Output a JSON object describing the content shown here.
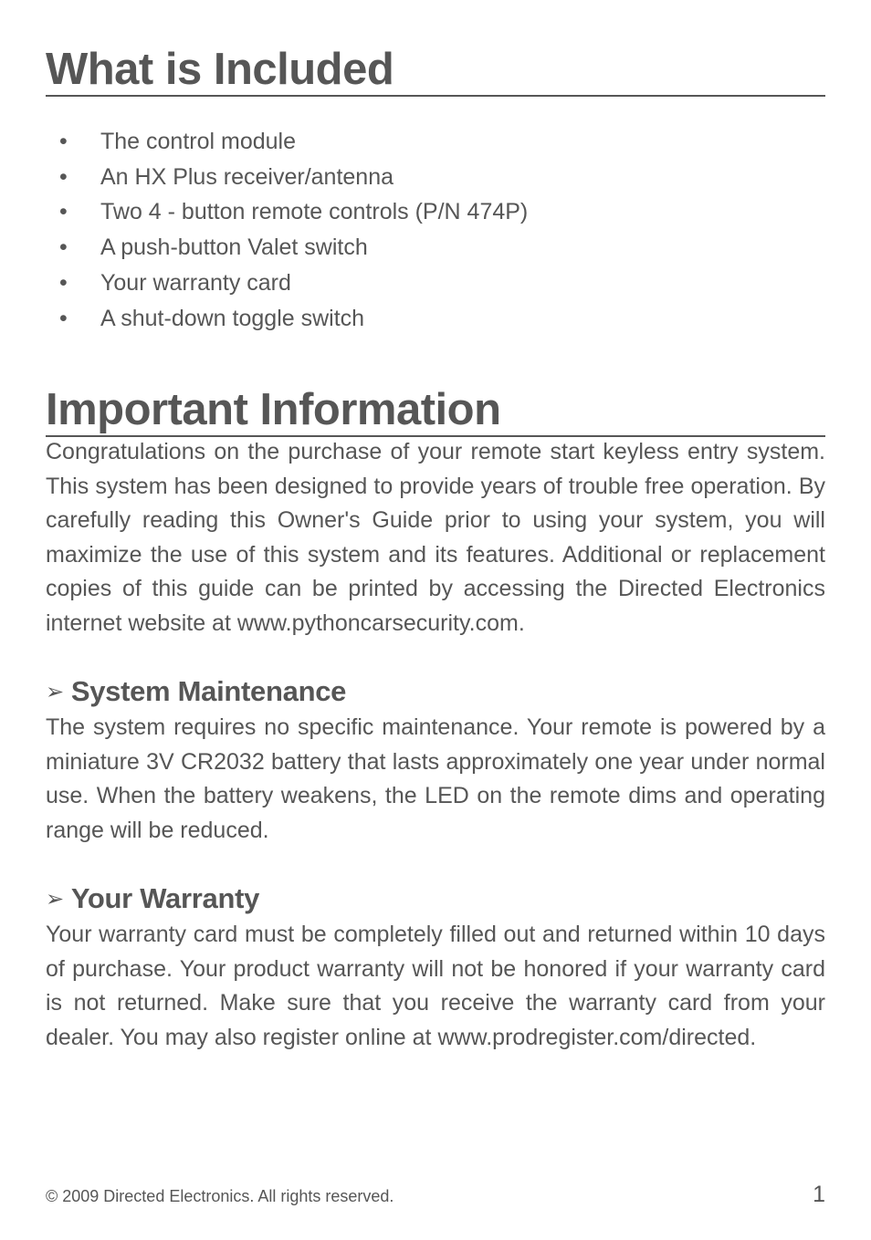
{
  "section1": {
    "heading": "What is Included",
    "bullets": [
      "The control module",
      "An HX Plus receiver/antenna",
      "Two 4 - button remote controls (P/N 474P)",
      "A push-button Valet switch",
      "Your warranty card",
      "A shut-down toggle switch"
    ]
  },
  "section2": {
    "heading": "Important Information",
    "intro_text": "Congratulations on the purchase of your remote start keyless entry system. This system has been designed to provide years of trouble free operation. By carefully reading this Owner's Guide prior to using your system, you will maximize the use of this system and its features. Additional or replacement copies of this guide can be printed by accessing the Directed Electronics internet website at ",
    "intro_link": "www.pythoncarsecurity.com",
    "intro_suffix": ".",
    "sub1": {
      "heading": "System Maintenance",
      "text": "The system requires no specific maintenance. Your remote is powered by a miniature 3V CR2032 battery that lasts approximately one year under normal use. When the battery weakens, the LED on the remote dims and operating range will be reduced."
    },
    "sub2": {
      "heading": "Your Warranty",
      "text": "Your warranty card must be completely filled out and returned within 10 days of purchase. Your product warranty will not be honored if your warranty card is not returned. Make sure that you receive the warranty card from your dealer. You may also register online at ",
      "link": "www.prodregister.com/directed."
    }
  },
  "footer": {
    "copyright": "© 2009 Directed Electronics. All rights reserved.",
    "page": "1"
  },
  "styles": {
    "background_color": "#ffffff",
    "text_color": "#565656",
    "heading_fontsize": 49,
    "subheading_fontsize": 31,
    "body_fontsize": 25,
    "footer_fontsize": 18
  }
}
